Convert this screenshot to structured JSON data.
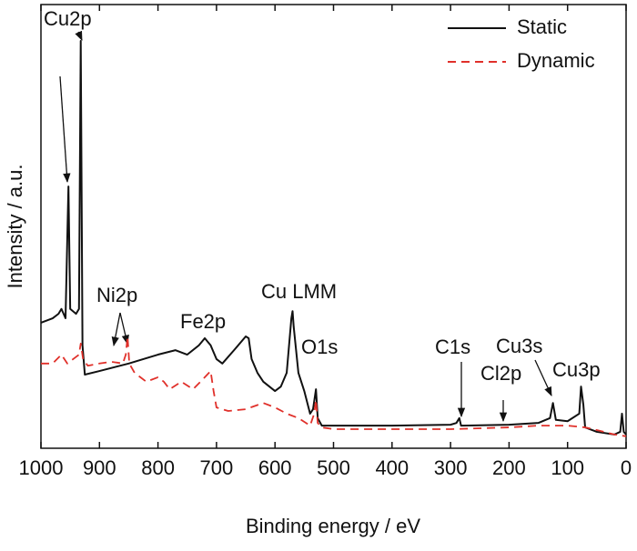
{
  "chart_data": {
    "type": "line",
    "xlabel": "Binding energy / eV",
    "ylabel": "Intensity / a.u.",
    "xlim": [
      1000,
      0
    ],
    "xticks": [
      1000,
      900,
      800,
      700,
      600,
      500,
      400,
      300,
      200,
      100,
      0
    ],
    "ylim": [
      0,
      100
    ],
    "legend": "upper right",
    "annotations": [
      "Cu2p",
      "Ni2p",
      "Fe2p",
      "Cu LMM",
      "O1s",
      "C1s",
      "Cl2p",
      "Cu3s",
      "Cu3p"
    ],
    "series": [
      {
        "name": "Static",
        "color": "#111111",
        "dash": false,
        "x": [
          1000,
          980,
          970,
          965,
          958,
          953,
          950,
          940,
          935,
          932,
          929,
          925,
          900,
          850,
          800,
          770,
          750,
          730,
          720,
          710,
          700,
          690,
          670,
          650,
          645,
          640,
          630,
          620,
          600,
          590,
          580,
          572,
          570,
          568,
          560,
          550,
          540,
          535,
          530,
          527,
          520,
          500,
          400,
          300,
          290,
          285,
          282,
          200,
          150,
          130,
          125,
          120,
          100,
          80,
          77,
          73,
          70,
          50,
          20,
          10,
          7,
          4,
          0
        ],
        "values": [
          28.3,
          29.3,
          30.3,
          31.4,
          29.3,
          59.0,
          31.4,
          30.3,
          31.4,
          91.8,
          23.2,
          16.6,
          17.4,
          19.1,
          21.1,
          22.1,
          21.1,
          23.2,
          24.8,
          23.2,
          20.1,
          19.1,
          22.1,
          25.2,
          24.8,
          20.1,
          17.0,
          15.0,
          12.9,
          13.9,
          17.0,
          29.3,
          30.9,
          27.3,
          17.0,
          12.9,
          7.8,
          8.8,
          13.3,
          6.8,
          5.1,
          5.1,
          5.1,
          5.3,
          5.7,
          6.8,
          5.1,
          5.3,
          5.7,
          6.8,
          10.2,
          6.4,
          6.1,
          7.8,
          13.9,
          9.8,
          4.7,
          3.7,
          3.1,
          3.7,
          7.8,
          3.7,
          3.1
        ]
      },
      {
        "name": "Dynamic",
        "color": "#e0302a",
        "dash": true,
        "x": [
          1000,
          980,
          965,
          955,
          945,
          935,
          932,
          928,
          920,
          900,
          880,
          860,
          855,
          852,
          849,
          840,
          820,
          800,
          790,
          780,
          760,
          740,
          720,
          710,
          705,
          700,
          680,
          650,
          620,
          600,
          580,
          560,
          540,
          533,
          530,
          527,
          520,
          500,
          400,
          300,
          200,
          150,
          100,
          70,
          50,
          20,
          0
        ],
        "values": [
          19.1,
          19.1,
          21.1,
          19.1,
          20.1,
          21.1,
          23.6,
          20.1,
          18.6,
          19.1,
          19.5,
          19.1,
          21.1,
          25.2,
          19.1,
          17.0,
          15.0,
          16.0,
          15.0,
          13.3,
          15.0,
          13.3,
          16.0,
          17.4,
          12.9,
          9.2,
          8.4,
          8.8,
          10.2,
          9.2,
          7.8,
          6.8,
          5.1,
          7.8,
          10.9,
          5.7,
          4.7,
          4.3,
          4.3,
          4.3,
          4.7,
          5.1,
          5.1,
          4.7,
          4.1,
          3.1,
          2.7
        ]
      }
    ]
  }
}
